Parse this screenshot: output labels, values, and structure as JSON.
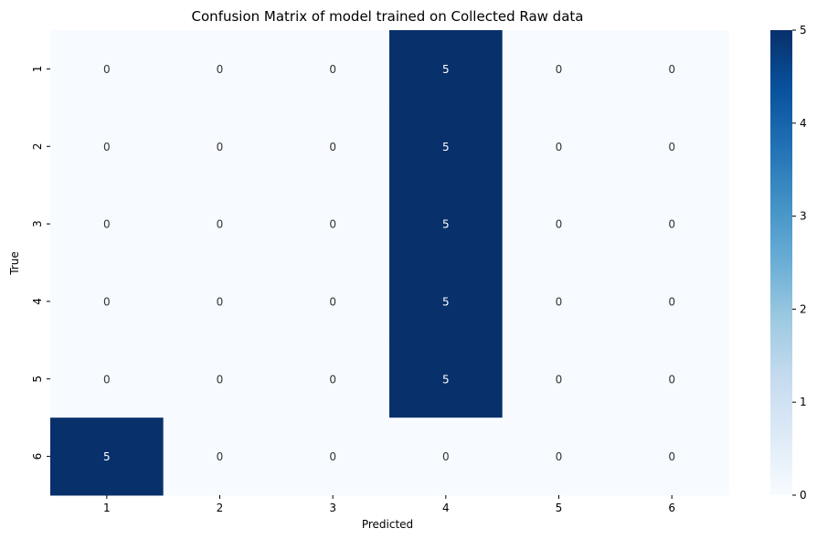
{
  "chart_data": {
    "type": "heatmap",
    "title": "Confusion Matrix of model trained on Collected Raw data",
    "xlabel": "Predicted",
    "ylabel": "True",
    "x_categories": [
      "1",
      "2",
      "3",
      "4",
      "5",
      "6"
    ],
    "y_categories": [
      "1",
      "2",
      "3",
      "4",
      "5",
      "6"
    ],
    "values": [
      [
        0,
        0,
        0,
        5,
        0,
        0
      ],
      [
        0,
        0,
        0,
        5,
        0,
        0
      ],
      [
        0,
        0,
        0,
        5,
        0,
        0
      ],
      [
        0,
        0,
        0,
        5,
        0,
        0
      ],
      [
        0,
        0,
        0,
        5,
        0,
        0
      ],
      [
        5,
        0,
        0,
        0,
        0,
        0
      ]
    ],
    "colorbar": {
      "range": [
        0,
        5
      ],
      "ticks": [
        "0",
        "1",
        "2",
        "3",
        "4",
        "5"
      ]
    },
    "colormap": "Blues",
    "colors": {
      "low": "#f7fbff",
      "high": "#08306b",
      "text_on_low": "#333333",
      "text_on_high": "#ffffff"
    },
    "annotations_shown": true
  }
}
